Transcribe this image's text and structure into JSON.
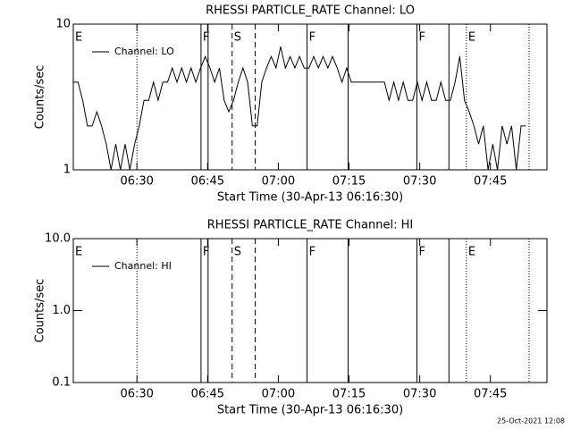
{
  "footer": "25-Oct-2021 12:08",
  "chart_data": [
    {
      "type": "line",
      "title": "RHESSI PARTICLE_RATE Channel: LO",
      "xlabel": "Start Time (30-Apr-13 06:16:30)",
      "ylabel": "Counts/sec",
      "log_y": true,
      "color": "#000000",
      "xlim": [
        376.5,
        477
      ],
      "xticks": [
        {
          "value": 390,
          "label": "06:30"
        },
        {
          "value": 405,
          "label": "06:45"
        },
        {
          "value": 420,
          "label": "07:00"
        },
        {
          "value": 435,
          "label": "07:15"
        },
        {
          "value": 450,
          "label": "07:30"
        },
        {
          "value": 465,
          "label": "07:45"
        }
      ],
      "ylim": [
        1,
        10
      ],
      "yticks": [
        1,
        10
      ],
      "series": [
        {
          "name": "Channel: LO",
          "color": "#000000",
          "x": [
            376.5,
            377.5,
            378.5,
            379.5,
            380.5,
            381.5,
            382.5,
            383.5,
            384.5,
            385.5,
            386.5,
            387.5,
            388.5,
            389.5,
            390.5,
            391.5,
            392.5,
            393.5,
            394.5,
            395.5,
            396.5,
            397.5,
            398.5,
            399.5,
            400.5,
            401.5,
            402.5,
            403.5,
            404.5,
            405.5,
            406.5,
            407.5,
            408.5,
            409.5,
            410.5,
            411.5,
            412.5,
            413.5,
            414.5,
            415.5,
            416.5,
            417.5,
            418.5,
            419.5,
            420.5,
            421.5,
            422.5,
            423.5,
            424.5,
            425.5,
            426.5,
            427.5,
            428.5,
            429.5,
            430.5,
            431.5,
            432.5,
            433.5,
            434.5,
            435.5,
            436.5,
            437.5,
            438.5,
            439.5,
            440.5,
            441.5,
            442.5,
            443.5,
            444.5,
            445.5,
            446.5,
            447.5,
            448.5,
            449.5,
            450.5,
            451.5,
            452.5,
            453.5,
            454.5,
            455.5,
            456.5,
            457.5,
            458.5,
            459.5,
            460.5,
            461.5,
            462.5,
            463.5,
            464.5,
            465.5,
            466.5,
            467.5,
            468.5,
            469.5,
            470.5,
            471.5,
            472.5
          ],
          "values": [
            4,
            4,
            3,
            2,
            2,
            2.5,
            2,
            1.5,
            1,
            1.5,
            1,
            1.5,
            1,
            1.5,
            2,
            3,
            3,
            4,
            3,
            4,
            4,
            5,
            4,
            5,
            4,
            5,
            4,
            5,
            6,
            5,
            4,
            5,
            3,
            2.5,
            3,
            4,
            5,
            4,
            2,
            2,
            4,
            5,
            6,
            5,
            7,
            5,
            6,
            5,
            6,
            5,
            5,
            6,
            5,
            6,
            5,
            6,
            5,
            4,
            5,
            4,
            4,
            4,
            4,
            4,
            4,
            4,
            4,
            3,
            4,
            3,
            4,
            3,
            3,
            4,
            3,
            4,
            3,
            3,
            4,
            3,
            3,
            4,
            6,
            3,
            2.5,
            2,
            1.5,
            2,
            1,
            1.5,
            1,
            2,
            1.5,
            2,
            1,
            2,
            2
          ]
        }
      ],
      "events": [
        {
          "x": 390.0,
          "style": "dotted"
        },
        {
          "x": 403.6,
          "style": "solid"
        },
        {
          "x": 405.1,
          "style": "solid"
        },
        {
          "x": 410.2,
          "style": "dashed"
        },
        {
          "x": 415.1,
          "style": "dashed"
        },
        {
          "x": 426.1,
          "style": "solid"
        },
        {
          "x": 434.8,
          "style": "solid"
        },
        {
          "x": 449.4,
          "style": "solid"
        },
        {
          "x": 456.2,
          "style": "solid"
        },
        {
          "x": 459.9,
          "style": "dotted"
        },
        {
          "x": 473.2,
          "style": "dotted"
        }
      ],
      "flags": [
        {
          "x": 376.5,
          "text": "E"
        },
        {
          "x": 403.6,
          "text": "F"
        },
        {
          "x": 410.2,
          "text": "S"
        },
        {
          "x": 426.1,
          "text": "F"
        },
        {
          "x": 449.4,
          "text": "F"
        },
        {
          "x": 459.9,
          "text": "E"
        }
      ]
    },
    {
      "type": "line",
      "title": "RHESSI PARTICLE_RATE Channel: HI",
      "xlabel": "Start Time (30-Apr-13 06:16:30)",
      "ylabel": "Counts/sec",
      "log_y": true,
      "color": "#000000",
      "xlim": [
        376.5,
        477
      ],
      "xticks": [
        {
          "value": 390,
          "label": "06:30"
        },
        {
          "value": 405,
          "label": "06:45"
        },
        {
          "value": 420,
          "label": "07:00"
        },
        {
          "value": 435,
          "label": "07:15"
        },
        {
          "value": 450,
          "label": "07:30"
        },
        {
          "value": 465,
          "label": "07:45"
        }
      ],
      "ylim": [
        0.1,
        10
      ],
      "yticks": [
        0.1,
        {
          "value": 1,
          "label": "1.0"
        },
        {
          "value": 10,
          "label": "10.0"
        }
      ],
      "series": [
        {
          "name": "Channel: HI",
          "color": "#000000"
        }
      ],
      "events": [
        {
          "x": 390.0,
          "style": "dotted"
        },
        {
          "x": 403.6,
          "style": "solid"
        },
        {
          "x": 405.1,
          "style": "solid"
        },
        {
          "x": 410.2,
          "style": "dashed"
        },
        {
          "x": 415.1,
          "style": "dashed"
        },
        {
          "x": 426.1,
          "style": "solid"
        },
        {
          "x": 434.8,
          "style": "solid"
        },
        {
          "x": 449.4,
          "style": "solid"
        },
        {
          "x": 456.2,
          "style": "solid"
        },
        {
          "x": 459.9,
          "style": "dotted"
        },
        {
          "x": 473.2,
          "style": "dotted"
        }
      ],
      "flags": [
        {
          "x": 376.5,
          "text": "E"
        },
        {
          "x": 403.6,
          "text": "F"
        },
        {
          "x": 410.2,
          "text": "S"
        },
        {
          "x": 426.1,
          "text": "F"
        },
        {
          "x": 449.4,
          "text": "F"
        },
        {
          "x": 459.9,
          "text": "E"
        }
      ]
    }
  ]
}
